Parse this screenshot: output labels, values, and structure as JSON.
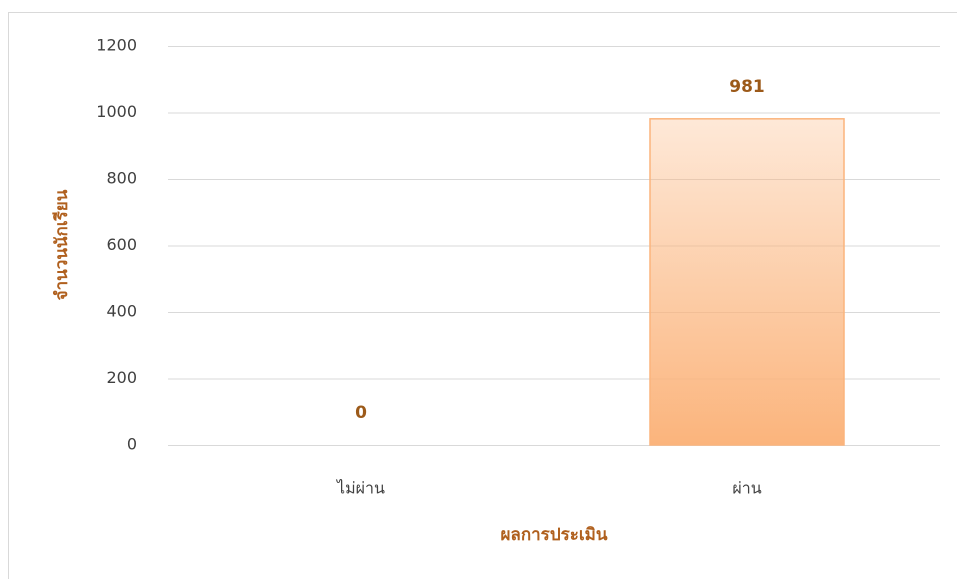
{
  "chart_data": {
    "type": "bar",
    "categories": [
      "ไม่ผ่าน",
      "ผ่าน"
    ],
    "values": [
      0,
      981
    ],
    "color": "#fbb47c",
    "x_label": "ผลการประเมิน",
    "y_label": "จำนวนนักเรียน",
    "ylim": [
      0,
      1200
    ],
    "yticks": [
      0,
      200,
      400,
      600,
      800,
      1000,
      1200
    ],
    "grid": true
  }
}
